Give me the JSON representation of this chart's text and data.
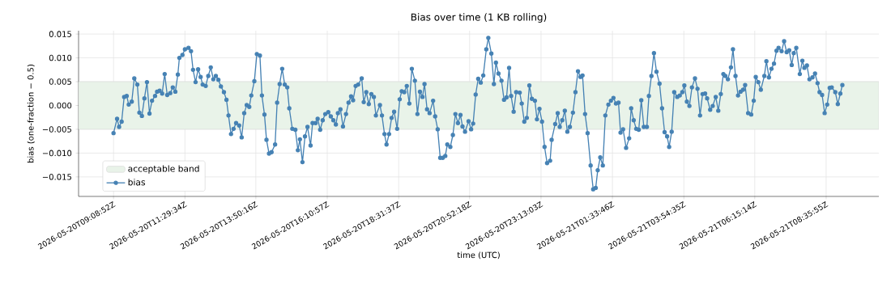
{
  "chart_data": {
    "type": "line",
    "title": "Bias over time (1 KB rolling)",
    "xlabel": "time (UTC)",
    "ylabel": "bias (one-fraction − 0.5)",
    "xlim": [
      "2026-05-20T08:00",
      "2026-05-21T10:20"
    ],
    "ylim": [
      -0.0191,
      0.0157
    ],
    "xticks": [
      {
        "value": "2026-05-20T09:09",
        "label": "2026-05-20T09:08:52Z"
      },
      {
        "value": "2026-05-20T11:30",
        "label": "2026-05-20T11:29:34Z"
      },
      {
        "value": "2026-05-20T13:50",
        "label": "2026-05-20T13:50:16Z"
      },
      {
        "value": "2026-05-20T16:11",
        "label": "2026-05-20T16:10:57Z"
      },
      {
        "value": "2026-05-20T18:32",
        "label": "2026-05-20T18:31:37Z"
      },
      {
        "value": "2026-05-20T20:52",
        "label": "2026-05-20T20:52:18Z"
      },
      {
        "value": "2026-05-20T23:13",
        "label": "2026-05-20T23:13:03Z"
      },
      {
        "value": "2026-05-21T01:34",
        "label": "2026-05-21T01:33:46Z"
      },
      {
        "value": "2026-05-21T03:55",
        "label": "2026-05-21T03:54:35Z"
      },
      {
        "value": "2026-05-21T06:15",
        "label": "2026-05-21T06:15:14Z"
      },
      {
        "value": "2026-05-21T08:36",
        "label": "2026-05-21T08:35:55Z"
      }
    ],
    "yticks": [
      {
        "value": -0.015,
        "label": "−0.015"
      },
      {
        "value": -0.01,
        "label": "−0.010"
      },
      {
        "value": -0.005,
        "label": "−0.005"
      },
      {
        "value": 0,
        "label": "0.000"
      },
      {
        "value": 0.005,
        "label": "0.005"
      },
      {
        "value": 0.01,
        "label": "0.010"
      },
      {
        "value": 0.015,
        "label": "0.015"
      }
    ],
    "grid": true,
    "legend": "bottom left",
    "marker": "circle",
    "line_style": "solid",
    "bands": [
      {
        "axis": "y",
        "from": -0.005,
        "to": 0.005,
        "label": "acceptable band",
        "color": "#e9f3e9"
      }
    ],
    "series": [
      {
        "name": "bias",
        "color": "#4682b4",
        "x": [
          "2026-05-20T09:09",
          "2026-05-20T09:16",
          "2026-05-20T09:20",
          "2026-05-20T09:25",
          "2026-05-20T09:30",
          "2026-05-20T09:35",
          "2026-05-20T09:39",
          "2026-05-20T09:45",
          "2026-05-20T09:50",
          "2026-05-20T09:56",
          "2026-05-20T10:00",
          "2026-05-20T10:05",
          "2026-05-20T10:10",
          "2026-05-20T10:15",
          "2026-05-20T10:20",
          "2026-05-20T10:25",
          "2026-05-20T10:31",
          "2026-05-20T10:35",
          "2026-05-20T10:40",
          "2026-05-20T10:45",
          "2026-05-20T10:50",
          "2026-05-20T10:55",
          "2026-05-20T11:01",
          "2026-05-20T11:06",
          "2026-05-20T11:11",
          "2026-05-20T11:16",
          "2026-05-20T11:19",
          "2026-05-20T11:25",
          "2026-05-20T11:30",
          "2026-05-20T11:37",
          "2026-05-20T11:42",
          "2026-05-20T11:46",
          "2026-05-20T11:51",
          "2026-05-20T11:56",
          "2026-05-20T12:01",
          "2026-05-20T12:05",
          "2026-05-20T12:11",
          "2026-05-20T12:16",
          "2026-05-20T12:21",
          "2026-05-20T12:26",
          "2026-05-20T12:31",
          "2026-05-20T12:36",
          "2026-05-20T12:41",
          "2026-05-20T12:47",
          "2026-05-20T12:52",
          "2026-05-20T12:56",
          "2026-05-20T13:01",
          "2026-05-20T13:06",
          "2026-05-20T13:11",
          "2026-05-20T13:17",
          "2026-05-20T13:22",
          "2026-05-20T13:27",
          "2026-05-20T13:32",
          "2026-05-20T13:37",
          "2026-05-20T13:41",
          "2026-05-20T13:47",
          "2026-05-20T13:52",
          "2026-05-20T13:58",
          "2026-05-20T14:02",
          "2026-05-20T14:07",
          "2026-05-20T14:11",
          "2026-05-20T14:16",
          "2026-05-20T14:21",
          "2026-05-20T14:28",
          "2026-05-20T14:32",
          "2026-05-20T14:37",
          "2026-05-20T14:42",
          "2026-05-20T14:47",
          "2026-05-20T14:52",
          "2026-05-20T14:56",
          "2026-05-20T15:02",
          "2026-05-20T15:08",
          "2026-05-20T15:13",
          "2026-05-20T15:17",
          "2026-05-20T15:22",
          "2026-05-20T15:27",
          "2026-05-20T15:32",
          "2026-05-20T15:38",
          "2026-05-20T15:42",
          "2026-05-20T15:48",
          "2026-05-20T15:52",
          "2026-05-20T15:57",
          "2026-05-20T16:02",
          "2026-05-20T16:07",
          "2026-05-20T16:13",
          "2026-05-20T16:18",
          "2026-05-20T16:23",
          "2026-05-20T16:28",
          "2026-05-20T16:32",
          "2026-05-20T16:37",
          "2026-05-20T16:42",
          "2026-05-20T16:48",
          "2026-05-20T16:53",
          "2026-05-20T16:58",
          "2026-05-20T17:02",
          "2026-05-20T17:07",
          "2026-05-20T17:12",
          "2026-05-20T17:19",
          "2026-05-20T17:23",
          "2026-05-20T17:28",
          "2026-05-20T17:33",
          "2026-05-20T17:38",
          "2026-05-20T17:43",
          "2026-05-20T17:47",
          "2026-05-20T17:55",
          "2026-05-20T17:59",
          "2026-05-20T18:04",
          "2026-05-20T18:08",
          "2026-05-20T18:13",
          "2026-05-20T18:18",
          "2026-05-20T18:23",
          "2026-05-20T18:29",
          "2026-05-20T18:34",
          "2026-05-20T18:38",
          "2026-05-20T18:43",
          "2026-05-20T18:48",
          "2026-05-20T18:53",
          "2026-05-20T18:58",
          "2026-05-20T19:04",
          "2026-05-20T19:09",
          "2026-05-20T19:14",
          "2026-05-20T19:19",
          "2026-05-20T19:23",
          "2026-05-20T19:28",
          "2026-05-20T19:33",
          "2026-05-20T19:40",
          "2026-05-20T19:44",
          "2026-05-20T19:49",
          "2026-05-20T19:54",
          "2026-05-20T19:59",
          "2026-05-20T20:04",
          "2026-05-20T20:08",
          "2026-05-20T20:14",
          "2026-05-20T20:19",
          "2026-05-20T20:24",
          "2026-05-20T20:29",
          "2026-05-20T20:34",
          "2026-05-20T20:38",
          "2026-05-20T20:43",
          "2026-05-20T20:50",
          "2026-05-20T20:55",
          "2026-05-20T20:59",
          "2026-05-20T21:04",
          "2026-05-20T21:09",
          "2026-05-20T21:14",
          "2026-05-20T21:19",
          "2026-05-20T21:25",
          "2026-05-20T21:29",
          "2026-05-20T21:35",
          "2026-05-20T21:40",
          "2026-05-20T21:44",
          "2026-05-20T21:49",
          "2026-05-20T21:55",
          "2026-05-20T22:00",
          "2026-05-20T22:05",
          "2026-05-20T22:10",
          "2026-05-20T22:14",
          "2026-05-20T22:19",
          "2026-05-20T22:24",
          "2026-05-20T22:31",
          "2026-05-20T22:35",
          "2026-05-20T22:40",
          "2026-05-20T22:45",
          "2026-05-20T22:50",
          "2026-05-20T22:55",
          "2026-05-20T23:01",
          "2026-05-20T23:05",
          "2026-05-20T23:10",
          "2026-05-20T23:15",
          "2026-05-20T23:20",
          "2026-05-20T23:25",
          "2026-05-20T23:31",
          "2026-05-20T23:34",
          "2026-05-20T23:41",
          "2026-05-20T23:46",
          "2026-05-20T23:50",
          "2026-05-20T23:55",
          "2026-05-21T00:00",
          "2026-05-21T00:05",
          "2026-05-21T00:10",
          "2026-05-21T00:16",
          "2026-05-21T00:21",
          "2026-05-21T00:26",
          "2026-05-21T00:31",
          "2026-05-21T00:35",
          "2026-05-21T00:40",
          "2026-05-21T00:45",
          "2026-05-21T00:51",
          "2026-05-21T00:56",
          "2026-05-21T01:01",
          "2026-05-21T01:05",
          "2026-05-21T01:10",
          "2026-05-21T01:15",
          "2026-05-21T01:20",
          "2026-05-21T01:26",
          "2026-05-21T01:31",
          "2026-05-21T01:36",
          "2026-05-21T01:41",
          "2026-05-21T01:46",
          "2026-05-21T01:50",
          "2026-05-21T01:55",
          "2026-05-21T02:01",
          "2026-05-21T02:07",
          "2026-05-21T02:11",
          "2026-05-21T02:16",
          "2026-05-21T02:21",
          "2026-05-21T02:26",
          "2026-05-21T02:31",
          "2026-05-21T02:36",
          "2026-05-21T02:42",
          "2026-05-21T02:46",
          "2026-05-21T02:51",
          "2026-05-21T02:56",
          "2026-05-21T03:01",
          "2026-05-21T03:07",
          "2026-05-21T03:12",
          "2026-05-21T03:17",
          "2026-05-21T03:22",
          "2026-05-21T03:26",
          "2026-05-21T03:31",
          "2026-05-21T03:36",
          "2026-05-21T03:42",
          "2026-05-21T03:47",
          "2026-05-21T03:52",
          "2026-05-21T03:56",
          "2026-05-21T04:01",
          "2026-05-21T04:06",
          "2026-05-21T04:11",
          "2026-05-21T04:17",
          "2026-05-21T04:22",
          "2026-05-21T04:27",
          "2026-05-21T04:32",
          "2026-05-21T04:37",
          "2026-05-21T04:41",
          "2026-05-21T04:47",
          "2026-05-21T04:52",
          "2026-05-21T04:58",
          "2026-05-21T05:03",
          "2026-05-21T05:08",
          "2026-05-21T05:13",
          "2026-05-21T05:17",
          "2026-05-21T05:22",
          "2026-05-21T05:28",
          "2026-05-21T05:32",
          "2026-05-21T05:37",
          "2026-05-21T05:42",
          "2026-05-21T05:47",
          "2026-05-21T05:52",
          "2026-05-21T05:56",
          "2026-05-21T06:02",
          "2026-05-21T06:08",
          "2026-05-21T06:13",
          "2026-05-21T06:17",
          "2026-05-21T06:22",
          "2026-05-21T06:27",
          "2026-05-21T06:34",
          "2026-05-21T06:38",
          "2026-05-21T06:43",
          "2026-05-21T06:48",
          "2026-05-21T06:53",
          "2026-05-21T06:58",
          "2026-05-21T07:02",
          "2026-05-21T07:08",
          "2026-05-21T07:13",
          "2026-05-21T07:18",
          "2026-05-21T07:23",
          "2026-05-21T07:28",
          "2026-05-21T07:32",
          "2026-05-21T07:37",
          "2026-05-21T07:44",
          "2026-05-21T07:49",
          "2026-05-21T07:53",
          "2026-05-21T07:58",
          "2026-05-21T08:03",
          "2026-05-21T08:09",
          "2026-05-21T08:14",
          "2026-05-21T08:19",
          "2026-05-21T08:23",
          "2026-05-21T08:28",
          "2026-05-21T08:33",
          "2026-05-21T08:38",
          "2026-05-21T08:43",
          "2026-05-21T08:47",
          "2026-05-21T08:54",
          "2026-05-21T08:59",
          "2026-05-21T09:04",
          "2026-05-21T09:08"
        ],
        "values": [
          -0.0058,
          -0.0028,
          -0.0045,
          -0.0034,
          0.0018,
          0.002,
          0.0002,
          0.0008,
          0.0057,
          0.0044,
          -0.0015,
          -0.0022,
          0.0015,
          0.0049,
          -0.0017,
          0.001,
          0.002,
          0.0029,
          0.0031,
          0.0025,
          0.0066,
          0.0022,
          0.0026,
          0.0038,
          0.0029,
          0.0065,
          0.01,
          0.0106,
          0.0118,
          0.0121,
          0.0114,
          0.0075,
          0.0049,
          0.0076,
          0.006,
          0.0044,
          0.0041,
          0.0062,
          0.008,
          0.0055,
          0.0062,
          0.0054,
          0.004,
          0.0028,
          0.0012,
          -0.0021,
          -0.006,
          -0.0049,
          -0.0037,
          -0.0042,
          -0.0067,
          -0.0016,
          0.0001,
          -0.0003,
          0.0021,
          0.0051,
          0.0108,
          0.0105,
          0.0021,
          -0.0019,
          -0.0072,
          -0.0101,
          -0.0098,
          -0.0082,
          0.0006,
          0.0045,
          0.0077,
          0.0044,
          0.0038,
          -0.0006,
          -0.0049,
          -0.0051,
          -0.0094,
          -0.0071,
          -0.0119,
          -0.0065,
          -0.0045,
          -0.0084,
          -0.0037,
          -0.0037,
          -0.0028,
          -0.0051,
          -0.0031,
          -0.0018,
          -0.0014,
          -0.0023,
          -0.0031,
          -0.004,
          -0.0016,
          -0.0008,
          -0.0044,
          -0.0018,
          0.0006,
          0.0019,
          0.0011,
          0.0041,
          0.0044,
          0.0057,
          0.0007,
          0.0028,
          0.0003,
          0.0024,
          0.0018,
          -0.0021,
          0.0001,
          -0.0021,
          -0.006,
          -0.0082,
          -0.006,
          -0.0026,
          -0.0013,
          -0.0049,
          0.0013,
          0.003,
          0.0028,
          0.0041,
          0.0004,
          0.0077,
          0.0052,
          -0.0018,
          0.0029,
          0.0018,
          0.0045,
          -0.0008,
          -0.0016,
          0.001,
          -0.0023,
          -0.005,
          -0.011,
          -0.011,
          -0.0106,
          -0.0082,
          -0.0087,
          -0.0062,
          -0.0018,
          -0.0037,
          -0.002,
          -0.0044,
          -0.0055,
          -0.0033,
          -0.005,
          -0.0038,
          0.0023,
          0.0056,
          0.0048,
          0.0063,
          0.0118,
          0.0142,
          0.0109,
          0.0045,
          0.009,
          0.0067,
          0.0052,
          0.0012,
          0.0017,
          0.0079,
          0.002,
          -0.0013,
          0.0028,
          0.0027,
          0.0004,
          -0.0034,
          -0.0026,
          0.0042,
          0.0014,
          0.001,
          -0.0029,
          -0.0007,
          -0.0034,
          -0.0087,
          -0.0121,
          -0.0116,
          -0.0072,
          -0.0039,
          -0.0016,
          -0.0045,
          -0.0031,
          -0.0011,
          -0.0055,
          -0.0045,
          -0.0015,
          0.0028,
          0.0072,
          0.006,
          0.0063,
          -0.0018,
          -0.0058,
          -0.0126,
          -0.0176,
          -0.0173,
          -0.0136,
          -0.0109,
          -0.0126,
          -0.0021,
          0.0002,
          0.001,
          0.0016,
          0.0004,
          0.0006,
          -0.0057,
          -0.005,
          -0.0089,
          -0.0069,
          -0.0006,
          -0.0031,
          -0.0049,
          -0.0051,
          0.0011,
          -0.0045,
          -0.0045,
          0.002,
          0.0062,
          0.011,
          0.0071,
          0.0046,
          -0.0006,
          -0.0056,
          -0.0065,
          -0.0087,
          -0.0055,
          0.0028,
          0.0018,
          0.0021,
          0.0028,
          0.0042,
          0.0008,
          -0.0001,
          0.0038,
          0.0057,
          0.0035,
          -0.0021,
          0.0024,
          0.0025,
          0.0015,
          -0.0009,
          -0.0001,
          0.0018,
          -0.0011,
          0.0024,
          0.0066,
          0.0062,
          0.0055,
          0.008,
          0.0118,
          0.0062,
          0.0021,
          0.0029,
          0.0033,
          0.0043,
          -0.0016,
          -0.0019,
          0.001,
          0.006,
          0.0049,
          0.0033,
          0.0062,
          0.0093,
          0.0059,
          0.0077,
          0.0088,
          0.0115,
          0.0121,
          0.0114,
          0.0135,
          0.0112,
          0.0116,
          0.0085,
          0.011,
          0.0121,
          0.0066,
          0.0094,
          0.0079,
          0.0084,
          0.0055,
          0.0059,
          0.0067,
          0.0047,
          0.0028,
          0.0022,
          -0.0016,
          0.0002,
          0.0037,
          0.0038,
          0.0028,
          0.0003,
          0.0025,
          0.0043
        ]
      }
    ]
  }
}
